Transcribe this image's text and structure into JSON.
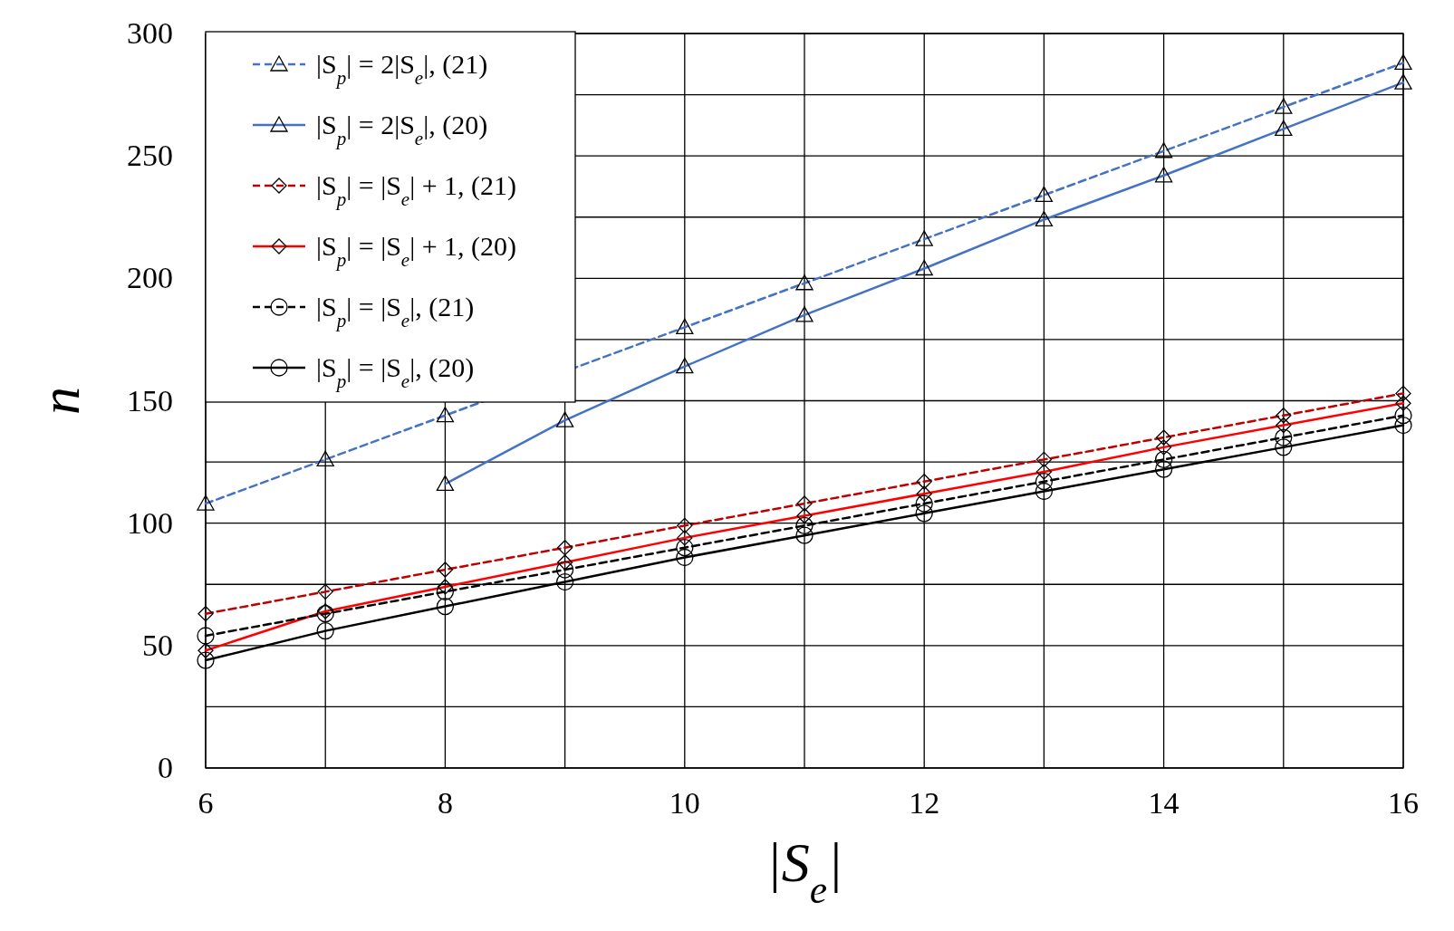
{
  "chart_data": {
    "type": "line",
    "xlabel": "|S$_{e}$|",
    "ylabel": "n",
    "x": [
      6,
      7,
      8,
      9,
      10,
      11,
      12,
      13,
      14,
      15,
      16
    ],
    "xlim": [
      6,
      16
    ],
    "xticks": [
      6,
      {
        "value": 7,
        "label": null
      },
      8,
      {
        "value": 9,
        "label": null
      },
      10,
      {
        "value": 11,
        "label": null
      },
      12,
      {
        "value": 13,
        "label": null
      },
      14,
      {
        "value": 15,
        "label": null
      },
      16
    ],
    "ylim": [
      0,
      300
    ],
    "yticks": [
      0,
      {
        "value": 25,
        "label": null
      },
      50,
      {
        "value": 75,
        "label": null
      },
      100,
      {
        "value": 125,
        "label": null
      },
      150,
      {
        "value": 175,
        "label": null
      },
      200,
      {
        "value": 225,
        "label": null
      },
      250,
      {
        "value": 275,
        "label": null
      },
      300
    ],
    "grid": true,
    "legend": "top left",
    "series": [
      {
        "name": "|S$_{p}$| = 2|S$_{e}$|, (21)",
        "color": "#4472c4",
        "line_style": "dashed",
        "marker": "triangle",
        "values": [
          108,
          126,
          144,
          null,
          180,
          198,
          216,
          234,
          252,
          270,
          288
        ]
      },
      {
        "name": "|S$_{p}$| = 2|S$_{e}$|, (20)",
        "color": "#4472c4",
        "line_style": "solid",
        "marker": "triangle",
        "values": [
          null,
          null,
          116,
          142,
          164,
          185,
          204,
          224,
          242,
          261,
          280
        ]
      },
      {
        "name": "|S$_{p}$| = |S$_{e}$| + 1, (21)",
        "color": "#c00000",
        "line_style": "dashed",
        "marker": "diamond",
        "values": [
          63,
          72,
          81,
          90,
          99,
          108,
          117,
          126,
          135,
          144,
          153
        ]
      },
      {
        "name": "|S$_{p}$| = |S$_{e}$| + 1, (20)",
        "color": "#ff0000",
        "line_style": "solid",
        "marker": "diamond",
        "values": [
          48,
          64,
          74,
          84,
          94,
          103,
          112,
          121,
          131,
          140,
          149
        ]
      },
      {
        "name": "|S$_{p}$| = |S$_{e}$|, (21)",
        "color": "#000000",
        "line_style": "dashed",
        "marker": "circle",
        "values": [
          54,
          63,
          72,
          81,
          90,
          99,
          108,
          117,
          126,
          135,
          144
        ]
      },
      {
        "name": "|S$_{p}$| = |S$_{e}$|, (20)",
        "color": "#000000",
        "line_style": "solid",
        "marker": "circle",
        "values": [
          44,
          56,
          66,
          76,
          86,
          95,
          104,
          113,
          122,
          131,
          140
        ]
      }
    ]
  }
}
